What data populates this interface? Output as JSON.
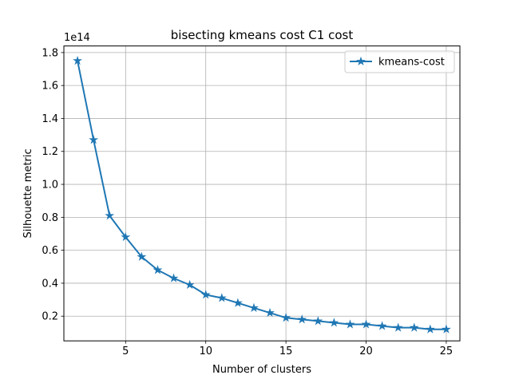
{
  "chart_data": {
    "type": "line",
    "title": "bisecting kmeans cost C1 cost",
    "xlabel": "Number of clusters",
    "ylabel": "Silhouette metric",
    "y_offset_label": "1e14",
    "y_scale_factor": 100000000000000.0,
    "xlim": [
      1.15,
      25.85
    ],
    "ylim": [
      0.05,
      1.84
    ],
    "x_ticks": [
      5,
      10,
      15,
      20,
      25
    ],
    "x_tick_labels": [
      "5",
      "10",
      "15",
      "20",
      "25"
    ],
    "y_ticks": [
      0.2,
      0.4,
      0.6,
      0.8,
      1.0,
      1.2,
      1.4,
      1.6,
      1.8
    ],
    "y_tick_labels": [
      "0.2",
      "0.4",
      "0.6",
      "0.8",
      "1.0",
      "1.2",
      "1.4",
      "1.6",
      "1.8"
    ],
    "grid": true,
    "legend_position": "upper-right",
    "series": [
      {
        "name": "kmeans-cost",
        "color": "#1f77b4",
        "marker": "star",
        "x": [
          2,
          3,
          4,
          5,
          6,
          7,
          8,
          9,
          10,
          11,
          12,
          13,
          14,
          15,
          16,
          17,
          18,
          19,
          20,
          21,
          22,
          23,
          24,
          25
        ],
        "values": [
          1.75,
          1.27,
          0.81,
          0.68,
          0.56,
          0.48,
          0.43,
          0.39,
          0.33,
          0.31,
          0.28,
          0.25,
          0.22,
          0.19,
          0.18,
          0.17,
          0.16,
          0.15,
          0.15,
          0.14,
          0.13,
          0.13,
          0.12,
          0.12
        ]
      }
    ]
  }
}
